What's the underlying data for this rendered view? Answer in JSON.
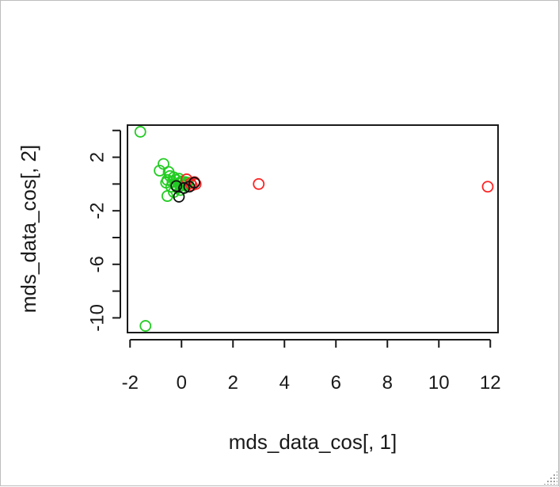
{
  "chart_data": {
    "type": "scatter",
    "title": "",
    "xlabel": "mds_data_cos[, 1]",
    "ylabel": "mds_data_cos[, 2]",
    "xlim": [
      -2.1,
      12.3
    ],
    "ylim": [
      -11.1,
      4.4
    ],
    "xticks": [
      -2,
      0,
      2,
      4,
      6,
      8,
      10,
      12
    ],
    "yticks": [
      -10,
      -8,
      -6,
      -4,
      -2,
      0,
      2,
      4
    ],
    "xtick_labels": [
      "-2",
      "0",
      "2",
      "4",
      "6",
      "8",
      "10",
      "12"
    ],
    "ytick_labels": [
      "-10",
      "",
      "-6",
      "",
      "-2",
      "",
      "2",
      ""
    ],
    "marker": "open-circle",
    "grid": false,
    "series": [
      {
        "color": "#22cc22",
        "points": [
          [
            -1.6,
            3.9
          ],
          [
            -1.4,
            -10.6
          ],
          [
            -0.7,
            1.5
          ],
          [
            -0.85,
            1.0
          ],
          [
            -0.5,
            0.9
          ],
          [
            -0.45,
            0.6
          ],
          [
            -0.55,
            0.3
          ],
          [
            -0.3,
            0.5
          ],
          [
            -0.35,
            0.15
          ],
          [
            -0.2,
            0.3
          ],
          [
            -0.4,
            -0.2
          ],
          [
            -0.55,
            -0.9
          ],
          [
            -0.3,
            -0.6
          ],
          [
            -0.15,
            -0.3
          ],
          [
            -0.1,
            0.05
          ],
          [
            0.0,
            0.2
          ],
          [
            0.05,
            -0.1
          ],
          [
            0.1,
            0.0
          ],
          [
            -0.05,
            -0.45
          ],
          [
            0.15,
            0.15
          ],
          [
            0.2,
            -0.05
          ],
          [
            -0.25,
            -0.05
          ],
          [
            -0.1,
            0.4
          ],
          [
            0.25,
            0.1
          ],
          [
            -0.6,
            0.1
          ]
        ]
      },
      {
        "color": "#ff2222",
        "points": [
          [
            11.9,
            -0.2
          ],
          [
            3.0,
            0.0
          ],
          [
            0.5,
            0.15
          ],
          [
            0.2,
            0.35
          ],
          [
            0.35,
            0.05
          ],
          [
            0.55,
            0.0
          ],
          [
            0.4,
            -0.1
          ]
        ]
      },
      {
        "color": "#111111",
        "points": [
          [
            -0.1,
            -0.95
          ],
          [
            0.5,
            0.1
          ],
          [
            0.3,
            -0.2
          ],
          [
            -0.2,
            -0.15
          ],
          [
            0.1,
            -0.3
          ]
        ]
      }
    ]
  }
}
